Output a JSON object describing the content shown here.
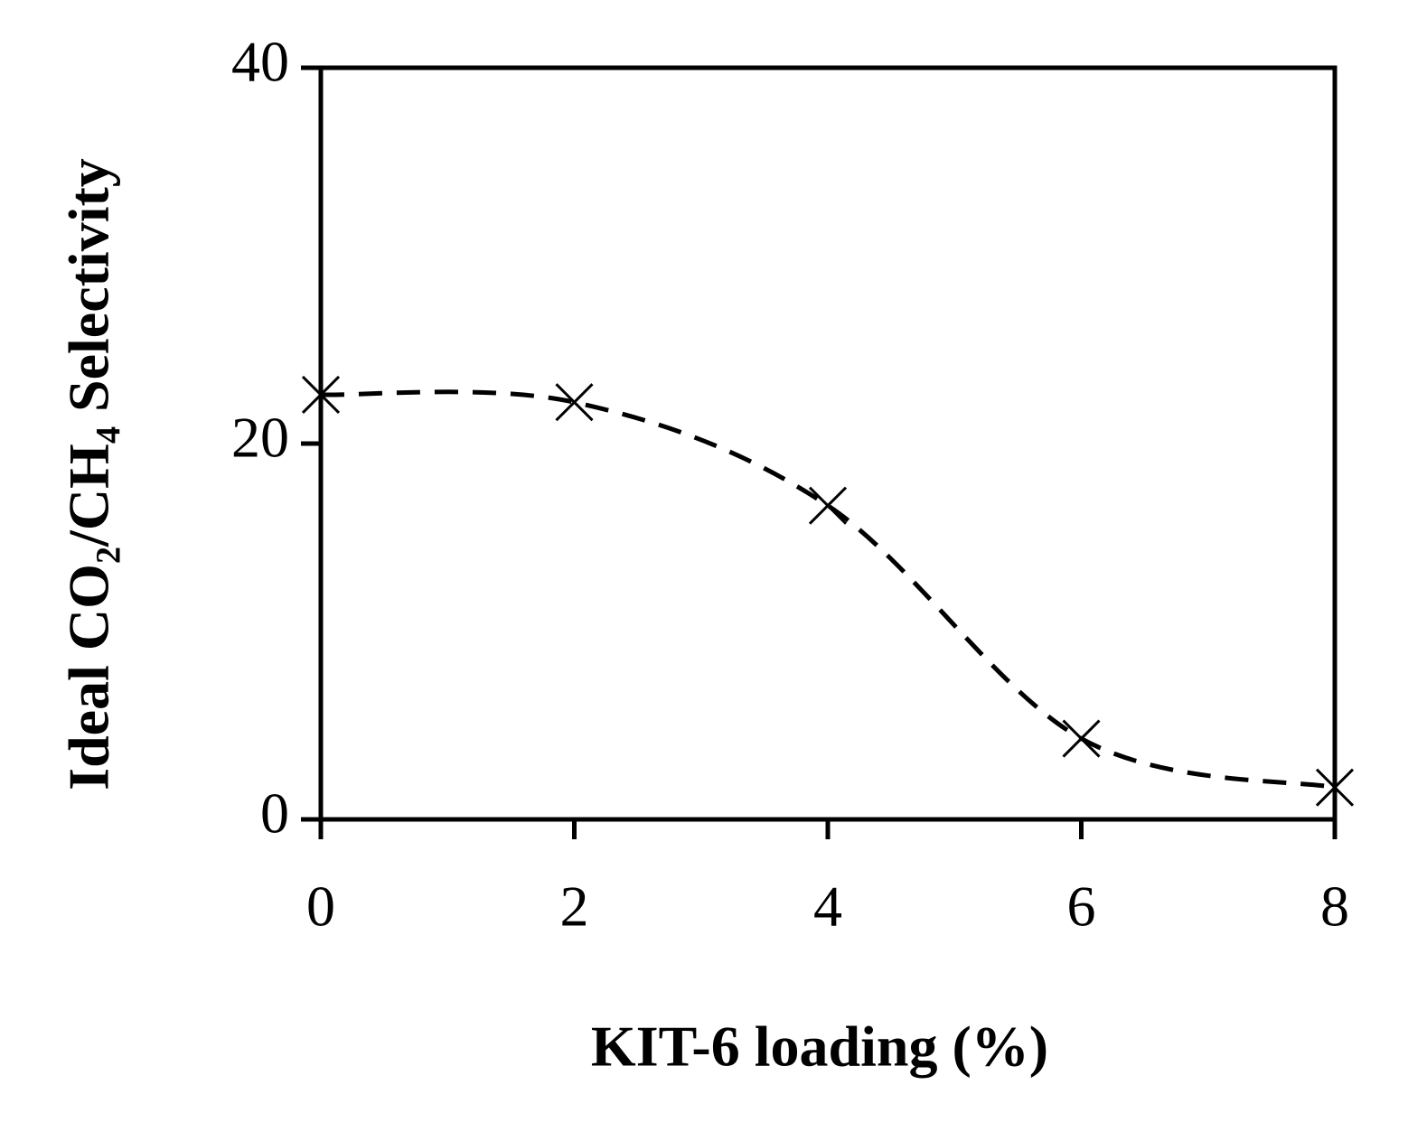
{
  "chart_data": {
    "type": "line",
    "x_label": "KIT-6 loading (%)",
    "y_label": "Ideal CO₂/CH₄ Selectivity",
    "x": [
      0,
      2,
      4,
      6,
      8
    ],
    "series": [
      {
        "color": "#000000",
        "values": [
          22.6,
          22.2,
          16.7,
          4.3,
          1.7
        ]
      }
    ],
    "xlim": [
      0,
      8
    ],
    "xticks": [
      0,
      2,
      4,
      6,
      8
    ],
    "ylim": [
      0,
      40
    ],
    "yticks": [
      0,
      20,
      40
    ],
    "marker": "x",
    "line_style": "dashed",
    "grid": false
  }
}
